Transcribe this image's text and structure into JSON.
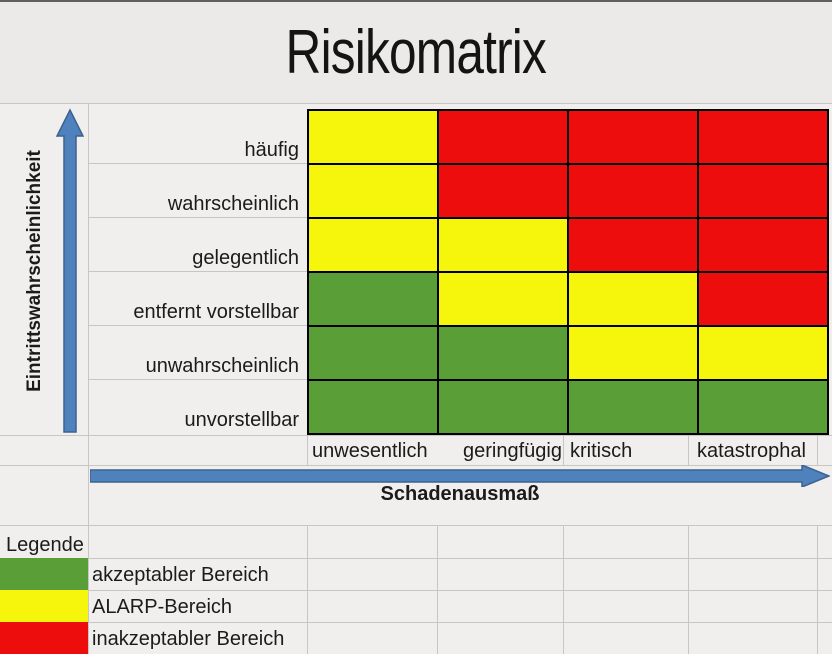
{
  "title": "Risikomatrix",
  "y_axis": {
    "label": "Eintrittswahrscheinlichkeit"
  },
  "x_axis": {
    "label": "Schadenausmaß"
  },
  "chart_data": {
    "type": "heatmap",
    "title": "Risikomatrix",
    "ylabel": "Eintrittswahrscheinlichkeit",
    "xlabel": "Schadenausmaß",
    "rows": [
      "häufig",
      "wahrscheinlich",
      "gelegentlich",
      "entfernt vorstellbar",
      "unwahrscheinlich",
      "unvorstellbar"
    ],
    "columns": [
      "unwesentlich",
      "geringfügig",
      "kritisch",
      "katastrophal"
    ],
    "cells": [
      [
        "yellow",
        "red",
        "red",
        "red"
      ],
      [
        "yellow",
        "red",
        "red",
        "red"
      ],
      [
        "yellow",
        "yellow",
        "red",
        "red"
      ],
      [
        "green",
        "yellow",
        "yellow",
        "red"
      ],
      [
        "green",
        "green",
        "yellow",
        "yellow"
      ],
      [
        "green",
        "green",
        "green",
        "green"
      ]
    ],
    "colors": {
      "green": "#5a9e38",
      "yellow": "#f6f60d",
      "red": "#ee0d0d"
    },
    "arrow_color": "#4f81bd"
  },
  "legend": {
    "header": "Legende",
    "items": [
      {
        "key": "green",
        "swatch": "#5a9e38",
        "label": "akzeptabler Bereich"
      },
      {
        "key": "yellow",
        "swatch": "#f6f60d",
        "label": "ALARP-Bereich"
      },
      {
        "key": "red",
        "swatch": "#ee0d0d",
        "label": "inakzeptabler Bereich"
      }
    ]
  }
}
